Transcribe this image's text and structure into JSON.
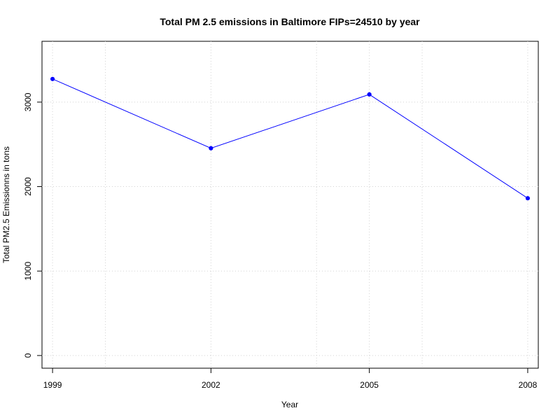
{
  "chart_data": {
    "type": "line",
    "title": "Total PM 2.5 emissions in Baltimore FIPs=24510 by year",
    "xlabel": "Year",
    "ylabel": "Total PM2.5 Emissionns in tons",
    "x": [
      1999,
      2002,
      2005,
      2008
    ],
    "series": [
      {
        "values": [
          3274,
          2454,
          3091,
          1862
        ],
        "color": "#0000ff",
        "marker": "filled-circle"
      }
    ],
    "xlim": [
      1998.8,
      2008.2
    ],
    "ylim": [
      -150,
      3720
    ],
    "x_ticks": [
      {
        "value": 1999,
        "label": "1999"
      },
      {
        "value": 2002,
        "label": "2002"
      },
      {
        "value": 2005,
        "label": "2005"
      },
      {
        "value": 2008,
        "label": "2008"
      }
    ],
    "y_ticks": [
      {
        "value": 0,
        "label": "0"
      },
      {
        "value": 1000,
        "label": "1000"
      },
      {
        "value": 2000,
        "label": "2000"
      },
      {
        "value": 3000,
        "label": "3000"
      }
    ],
    "x_grid_values": [
      1999,
      2000,
      2002,
      2004,
      2005,
      2006,
      2008
    ],
    "y_grid_values": [
      0,
      1000,
      2000,
      3000
    ],
    "grid": true,
    "grid_style": "dotted",
    "grid_color": "#d3d3d3",
    "legend": "none"
  }
}
